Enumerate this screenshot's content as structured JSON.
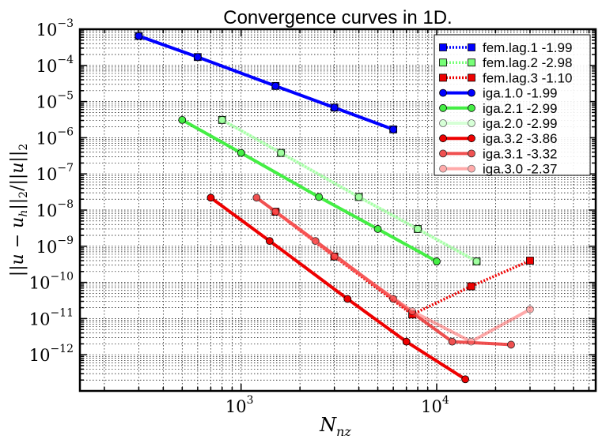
{
  "chart_data": {
    "type": "line",
    "title": "Convergence curves in 1D.",
    "xlabel": "N_nz",
    "ylabel": "||u - u_h||_2/||u||_2",
    "xscale": "log",
    "yscale": "log",
    "xlim": [
      150,
      65000
    ],
    "ylim": [
      1e-13,
      0.001
    ],
    "grid": true,
    "legend_position": "top-right",
    "x_tick_labels": [
      {
        "value": 1000,
        "base": "10",
        "exp": "3"
      },
      {
        "value": 10000,
        "base": "10",
        "exp": "4"
      }
    ],
    "y_tick_labels": [
      {
        "value": 0.001,
        "base": "10",
        "exp": "−3"
      },
      {
        "value": 0.0001,
        "base": "10",
        "exp": "−4"
      },
      {
        "value": 1e-05,
        "base": "10",
        "exp": "−5"
      },
      {
        "value": 1e-06,
        "base": "10",
        "exp": "−6"
      },
      {
        "value": 1e-07,
        "base": "10",
        "exp": "−7"
      },
      {
        "value": 1e-08,
        "base": "10",
        "exp": "−8"
      },
      {
        "value": 1e-09,
        "base": "10",
        "exp": "−9"
      },
      {
        "value": 1e-10,
        "base": "10",
        "exp": "−10"
      },
      {
        "value": 1e-11,
        "base": "10",
        "exp": "−11"
      },
      {
        "value": 1e-12,
        "base": "10",
        "exp": "−12"
      }
    ],
    "series": [
      {
        "name": "fem.lag.1 -1.99",
        "color": "#0000ff",
        "marker": "square",
        "linestyle": "dotted",
        "opacity": 1.0,
        "x": [
          300,
          600,
          1500,
          3000,
          6000
        ],
        "y": [
          0.00065,
          0.00017,
          2.7e-05,
          6.8e-06,
          1.7e-06
        ]
      },
      {
        "name": "fem.lag.2 -2.98",
        "color": "#77ff77",
        "marker": "square",
        "linestyle": "dotted",
        "opacity": 1.0,
        "x": [
          800,
          1600,
          4000,
          8000,
          16000
        ],
        "y": [
          3.1e-06,
          3.8e-07,
          2.3e-08,
          3e-09,
          3.8e-10
        ]
      },
      {
        "name": "fem.lag.3 -1.10",
        "color": "#ee0000",
        "marker": "square",
        "linestyle": "dotted",
        "opacity": 1.0,
        "x": [
          1500,
          3000,
          7500,
          15000,
          30000
        ],
        "y": [
          9e-09,
          5.2e-10,
          1.3e-11,
          7.8e-11,
          4e-10
        ]
      },
      {
        "name": "iga.1.0 -1.99",
        "color": "#0000ff",
        "marker": "circle",
        "linestyle": "solid",
        "opacity": 1.0,
        "x": [
          300,
          600,
          1500,
          3000,
          6000
        ],
        "y": [
          0.00065,
          0.00017,
          2.7e-05,
          6.8e-06,
          1.7e-06
        ]
      },
      {
        "name": "iga.2.1 -2.99",
        "color": "#44ee44",
        "marker": "circle",
        "linestyle": "solid",
        "opacity": 1.0,
        "x": [
          500,
          1000,
          2500,
          5000,
          10000
        ],
        "y": [
          3.1e-06,
          3.8e-07,
          2.3e-08,
          3e-09,
          3.8e-10
        ]
      },
      {
        "name": "iga.2.0 -2.99",
        "color": "#bbffbb",
        "marker": "circle",
        "linestyle": "solid",
        "opacity": 0.6,
        "x": [
          800,
          1600,
          4000,
          8000,
          16000
        ],
        "y": [
          3.1e-06,
          3.8e-07,
          2.3e-08,
          3e-09,
          3.8e-10
        ]
      },
      {
        "name": "iga.3.2 -3.86",
        "color": "#ee0000",
        "marker": "circle",
        "linestyle": "solid",
        "opacity": 1.0,
        "x": [
          700,
          1400,
          3500,
          7000,
          14000
        ],
        "y": [
          2.2e-08,
          1.4e-09,
          3.5e-11,
          2.3e-12,
          2.1e-13
        ]
      },
      {
        "name": "iga.3.1 -3.32",
        "color": "#ee3333",
        "marker": "circle",
        "linestyle": "solid",
        "opacity": 0.85,
        "x": [
          1200,
          2400,
          6000,
          12000,
          24000
        ],
        "y": [
          2.2e-08,
          1.4e-09,
          3.5e-11,
          2.3e-12,
          1.9e-12
        ]
      },
      {
        "name": "iga.3.0 -2.37",
        "color": "#ff6666",
        "marker": "circle",
        "linestyle": "solid",
        "opacity": 0.55,
        "x": [
          1500,
          3000,
          7500,
          15000,
          30000
        ],
        "y": [
          9e-09,
          5.2e-10,
          1.6e-11,
          2.3e-12,
          1.8e-11
        ]
      }
    ]
  }
}
